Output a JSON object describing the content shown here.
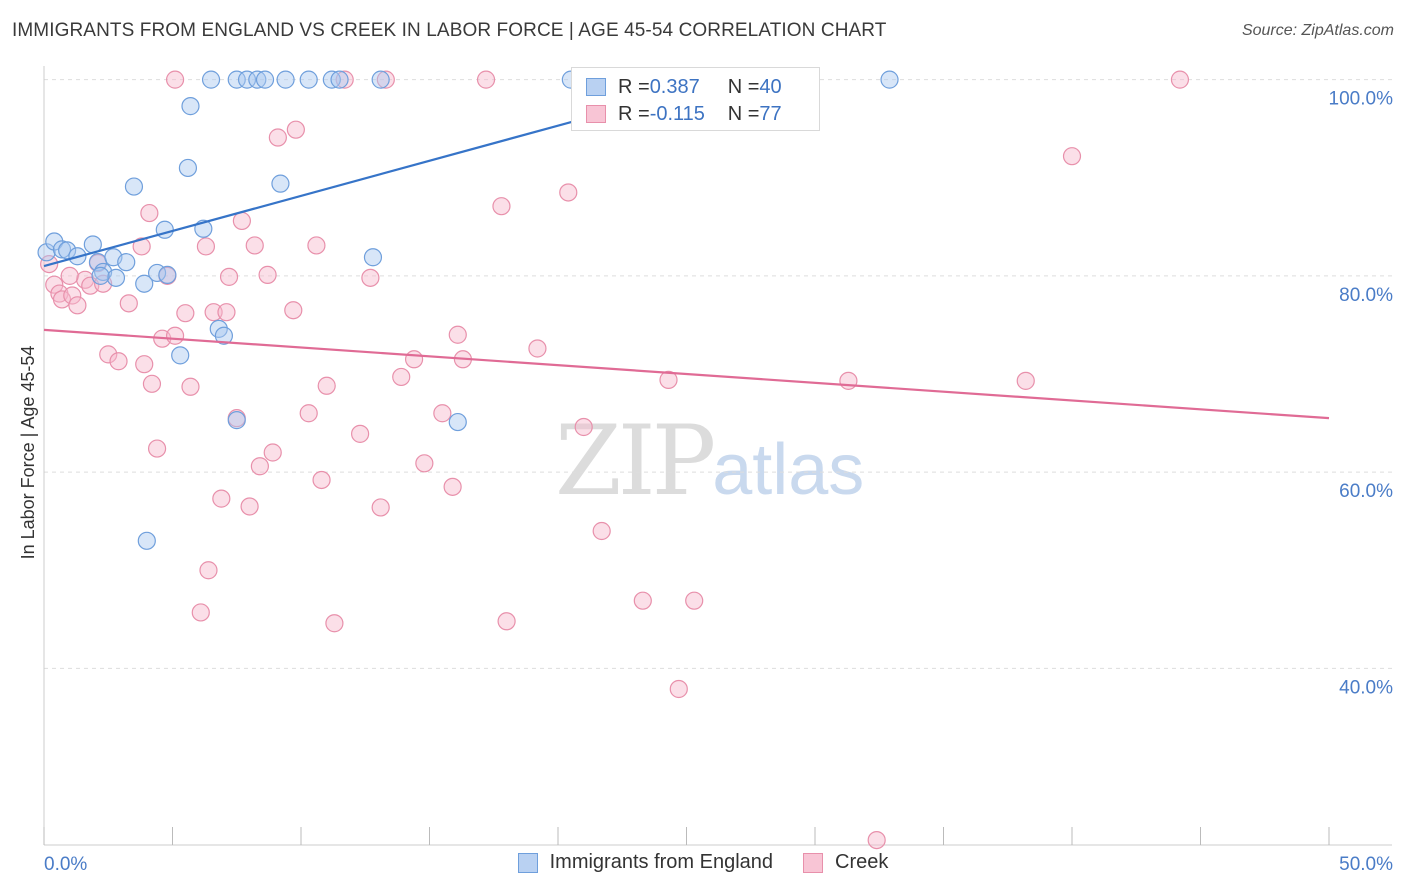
{
  "header": {
    "title": "IMMIGRANTS FROM ENGLAND VS CREEK IN LABOR FORCE | AGE 45-54 CORRELATION CHART",
    "source": "Source: ZipAtlas.com"
  },
  "watermark": {
    "zip": "ZIP",
    "atlas": "atlas"
  },
  "legend": {
    "rows": [
      {
        "r_label": "R = ",
        "r_value": "0.387",
        "n_label": "N = ",
        "n_value": "40"
      },
      {
        "r_label": "R = ",
        "r_value": "-0.115",
        "n_label": "N = ",
        "n_value": "77"
      }
    ]
  },
  "colors": {
    "blue_fill": "#a9c7ef",
    "blue_stroke": "#6f9fdc",
    "blue_line": "#3674c8",
    "pink_fill": "#f6b9cc",
    "pink_stroke": "#e890ab",
    "pink_line": "#e06b95",
    "axis_text": "#4a7cc7",
    "grid": "#dddddd"
  },
  "chart_data": {
    "type": "scatter",
    "title": "IMMIGRANTS FROM ENGLAND VS CREEK IN LABOR FORCE | AGE 45-54 CORRELATION CHART",
    "xlabel": "",
    "ylabel": "In Labor Force | Age 45-54",
    "xlim": [
      0,
      50
    ],
    "ylim": [
      22,
      102
    ],
    "x_tick_labels": [
      "0.0%",
      "50.0%"
    ],
    "y_ticks": [
      40,
      60,
      80,
      100
    ],
    "y_tick_labels": [
      "40.0%",
      "60.0%",
      "80.0%",
      "100.0%"
    ],
    "grid": true,
    "legend_placement": "bottom-center",
    "series": [
      {
        "name": "Immigrants from England",
        "r": 0.387,
        "n": 40,
        "trend": {
          "x": [
            0,
            26
          ],
          "y": [
            81.0,
            99.6
          ]
        },
        "points": [
          [
            0.1,
            82.4
          ],
          [
            0.4,
            83.5
          ],
          [
            0.7,
            82.7
          ],
          [
            0.9,
            82.6
          ],
          [
            1.3,
            82.0
          ],
          [
            1.9,
            83.2
          ],
          [
            2.1,
            81.4
          ],
          [
            2.3,
            80.4
          ],
          [
            2.8,
            79.8
          ],
          [
            2.7,
            81.9
          ],
          [
            3.2,
            81.4
          ],
          [
            3.5,
            89.1
          ],
          [
            3.9,
            79.2
          ],
          [
            4.4,
            80.3
          ],
          [
            4.8,
            80.1
          ],
          [
            4.7,
            84.7
          ],
          [
            5.3,
            71.9
          ],
          [
            5.6,
            91.0
          ],
          [
            5.7,
            97.3
          ],
          [
            6.2,
            84.8
          ],
          [
            6.5,
            100
          ],
          [
            6.8,
            74.6
          ],
          [
            7.0,
            73.9
          ],
          [
            7.5,
            65.3
          ],
          [
            7.5,
            100
          ],
          [
            7.9,
            100
          ],
          [
            8.3,
            100
          ],
          [
            8.6,
            100
          ],
          [
            9.2,
            89.4
          ],
          [
            9.4,
            100
          ],
          [
            10.3,
            100
          ],
          [
            11.2,
            100
          ],
          [
            11.5,
            100
          ],
          [
            12.8,
            81.9
          ],
          [
            13.1,
            100
          ],
          [
            16.1,
            65.1
          ],
          [
            20.5,
            100
          ],
          [
            4.0,
            53.0
          ],
          [
            32.9,
            100
          ],
          [
            2.2,
            80.0
          ]
        ]
      },
      {
        "name": "Creek",
        "r": -0.115,
        "n": 77,
        "trend": {
          "x": [
            0,
            50
          ],
          "y": [
            74.5,
            65.5
          ]
        },
        "points": [
          [
            0.2,
            81.2
          ],
          [
            0.4,
            79.1
          ],
          [
            0.6,
            78.2
          ],
          [
            0.7,
            77.6
          ],
          [
            1.1,
            78.0
          ],
          [
            1.3,
            77.0
          ],
          [
            1.6,
            79.6
          ],
          [
            1.8,
            79.0
          ],
          [
            2.1,
            81.3
          ],
          [
            2.3,
            79.2
          ],
          [
            2.5,
            72.0
          ],
          [
            2.9,
            71.3
          ],
          [
            3.3,
            77.2
          ],
          [
            3.8,
            83.0
          ],
          [
            3.9,
            71.0
          ],
          [
            4.1,
            86.4
          ],
          [
            4.2,
            69.0
          ],
          [
            4.4,
            62.4
          ],
          [
            4.6,
            73.6
          ],
          [
            4.8,
            80.0
          ],
          [
            5.1,
            73.9
          ],
          [
            5.5,
            76.2
          ],
          [
            5.7,
            68.7
          ],
          [
            6.1,
            45.7
          ],
          [
            6.3,
            83.0
          ],
          [
            6.4,
            50.0
          ],
          [
            6.6,
            76.3
          ],
          [
            6.9,
            57.3
          ],
          [
            7.1,
            76.3
          ],
          [
            7.2,
            79.9
          ],
          [
            7.5,
            65.5
          ],
          [
            7.7,
            85.6
          ],
          [
            8.0,
            56.5
          ],
          [
            8.2,
            83.1
          ],
          [
            8.4,
            60.6
          ],
          [
            8.7,
            80.1
          ],
          [
            8.9,
            62.0
          ],
          [
            9.1,
            94.1
          ],
          [
            9.7,
            76.5
          ],
          [
            9.8,
            94.9
          ],
          [
            10.3,
            66.0
          ],
          [
            10.6,
            83.1
          ],
          [
            10.8,
            59.2
          ],
          [
            11.0,
            68.8
          ],
          [
            11.3,
            44.6
          ],
          [
            11.7,
            100
          ],
          [
            12.3,
            63.9
          ],
          [
            12.7,
            79.8
          ],
          [
            13.1,
            56.4
          ],
          [
            13.3,
            100
          ],
          [
            13.9,
            69.7
          ],
          [
            14.4,
            71.5
          ],
          [
            14.8,
            60.9
          ],
          [
            15.5,
            66.0
          ],
          [
            15.9,
            58.5
          ],
          [
            16.1,
            74.0
          ],
          [
            16.3,
            71.5
          ],
          [
            17.2,
            100
          ],
          [
            17.8,
            87.1
          ],
          [
            18.0,
            44.8
          ],
          [
            19.2,
            72.6
          ],
          [
            20.4,
            88.5
          ],
          [
            21.0,
            64.6
          ],
          [
            21.7,
            54.0
          ],
          [
            22.9,
            95.8
          ],
          [
            23.3,
            46.9
          ],
          [
            24.3,
            69.4
          ],
          [
            24.7,
            37.9
          ],
          [
            25.3,
            46.9
          ],
          [
            27.1,
            100
          ],
          [
            31.3,
            69.3
          ],
          [
            32.4,
            22.5
          ],
          [
            38.2,
            69.3
          ],
          [
            40.0,
            92.2
          ],
          [
            44.2,
            100
          ],
          [
            5.1,
            100
          ],
          [
            1.0,
            80.0
          ]
        ]
      }
    ]
  }
}
